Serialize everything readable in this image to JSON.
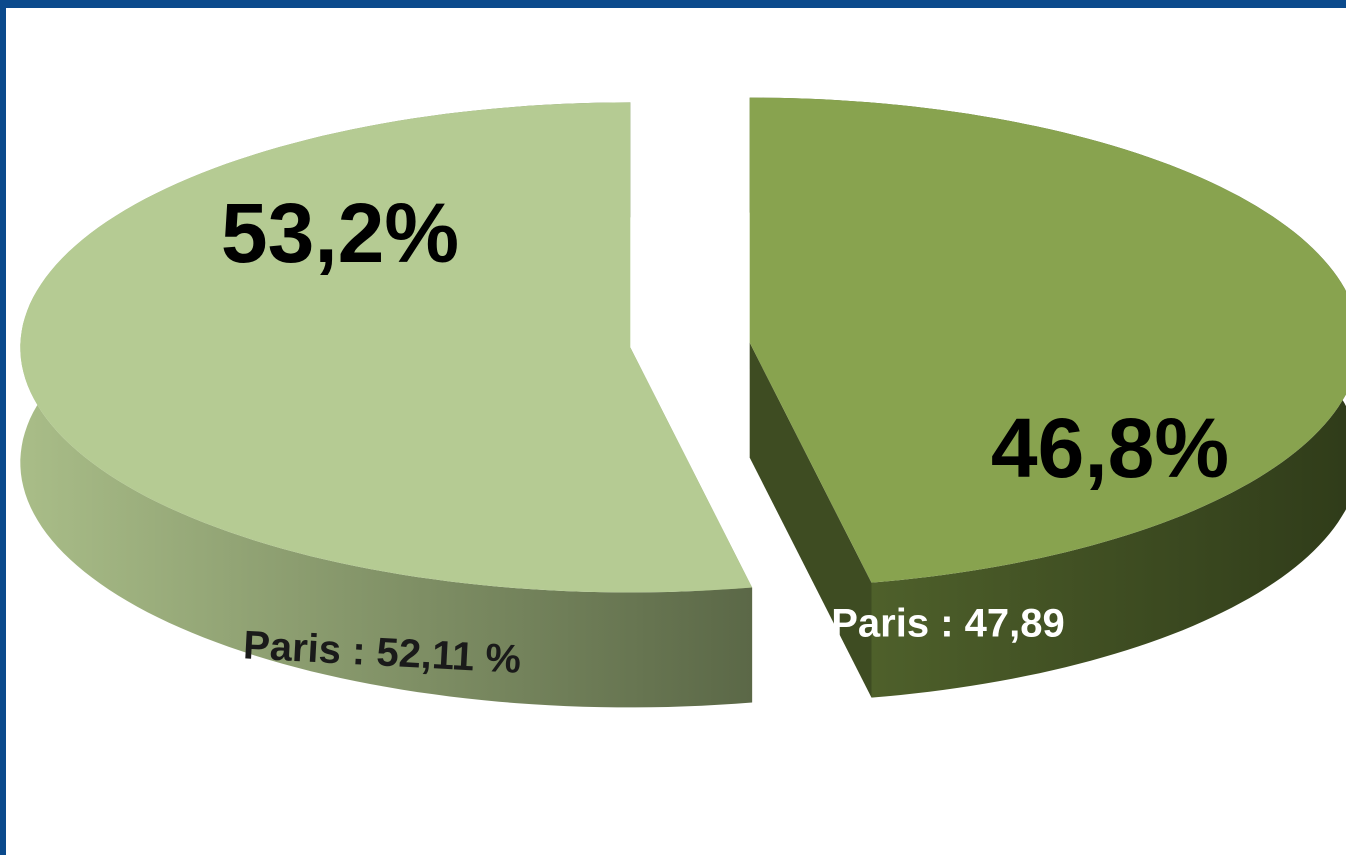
{
  "chart_data": {
    "type": "pie",
    "values": [
      53.2,
      46.8
    ],
    "value_labels": [
      "53,2%",
      "46,8%"
    ],
    "colors": [
      "#b5cb93",
      "#88a34f"
    ],
    "annotations": [
      "Paris : 52,11 %",
      "Paris : 47,89"
    ]
  }
}
